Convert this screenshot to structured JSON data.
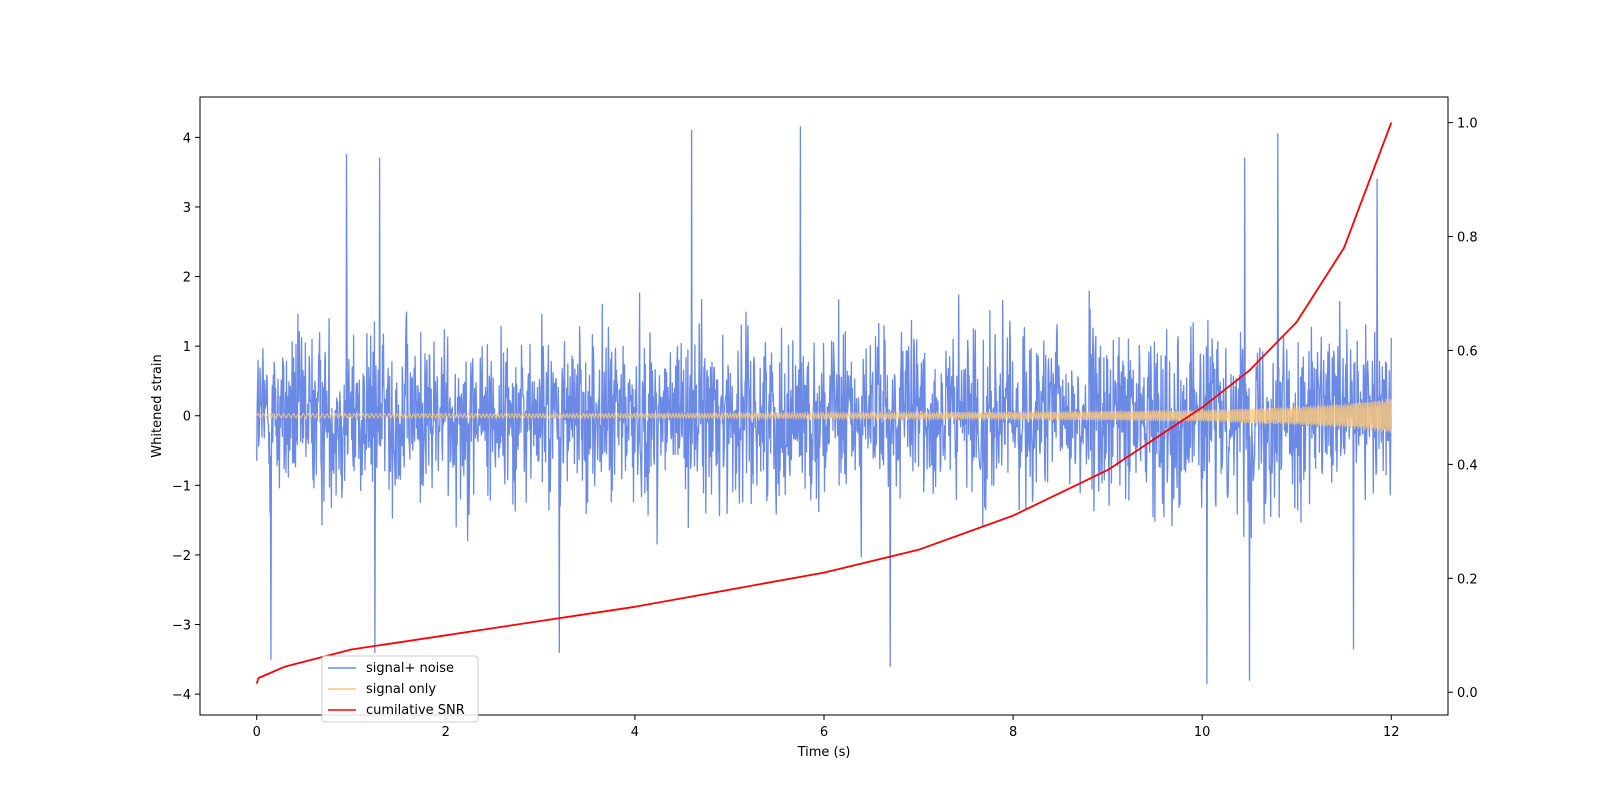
{
  "chart_data": {
    "type": "line",
    "xlabel": "Time (s)",
    "ylabel": "Whitened strain",
    "xlim": [
      -0.6,
      12.6
    ],
    "ylim": [
      -4.3,
      4.58
    ],
    "y2lim": [
      -0.04,
      1.045
    ],
    "xticks": [
      0,
      2,
      4,
      6,
      8,
      10,
      12
    ],
    "yticks": [
      -4,
      -3,
      -2,
      -1,
      0,
      1,
      2,
      3,
      4
    ],
    "y2ticks": [
      0.0,
      0.2,
      0.4,
      0.6,
      0.8,
      1.0
    ],
    "y2tick_labels": [
      "0.0",
      "0.2",
      "0.4",
      "0.6",
      "0.8",
      "1.0"
    ],
    "grid": false,
    "legend": {
      "placement": "lower-left",
      "entries": [
        {
          "label": "signal+ noise",
          "color": "#6a8ae6"
        },
        {
          "label": "signal only",
          "color": "#ffc878"
        },
        {
          "label": "cumilative SNR",
          "color": "#ff0000"
        }
      ]
    },
    "series": [
      {
        "name": "signal+ noise",
        "axis": "left",
        "color": "#6a8ae6",
        "kind": "gaussian-noise",
        "x_range": [
          0,
          12
        ],
        "typical_envelope": [
          -2.0,
          2.0
        ],
        "peaks": [
          [
            0.95,
            3.75
          ],
          [
            1.3,
            3.7
          ],
          [
            4.6,
            4.1
          ],
          [
            5.75,
            4.15
          ],
          [
            10.45,
            3.7
          ],
          [
            10.8,
            4.05
          ],
          [
            11.85,
            3.4
          ],
          [
            0.15,
            -3.5
          ],
          [
            1.25,
            -3.4
          ],
          [
            3.2,
            -3.4
          ],
          [
            6.7,
            -3.6
          ],
          [
            10.05,
            -3.85
          ],
          [
            10.5,
            -3.8
          ],
          [
            11.6,
            -3.35
          ]
        ]
      },
      {
        "name": "signal only",
        "axis": "left",
        "color": "#ffc878",
        "kind": "chirp",
        "x_range": [
          0,
          12
        ],
        "amplitude_points": [
          [
            0,
            0.03
          ],
          [
            4,
            0.03
          ],
          [
            8,
            0.05
          ],
          [
            10,
            0.08
          ],
          [
            11,
            0.13
          ],
          [
            11.5,
            0.17
          ],
          [
            12,
            0.25
          ]
        ]
      },
      {
        "name": "cumilative SNR",
        "axis": "right",
        "color": "#ff0000",
        "x": [
          0,
          0.02,
          0.3,
          1,
          2,
          3,
          4,
          5,
          6,
          7,
          8,
          9,
          10,
          10.5,
          11,
          11.5,
          12
        ],
        "y": [
          0.015,
          0.025,
          0.045,
          0.075,
          0.1,
          0.125,
          0.15,
          0.18,
          0.21,
          0.25,
          0.31,
          0.39,
          0.5,
          0.565,
          0.65,
          0.78,
          1.0
        ]
      }
    ]
  }
}
